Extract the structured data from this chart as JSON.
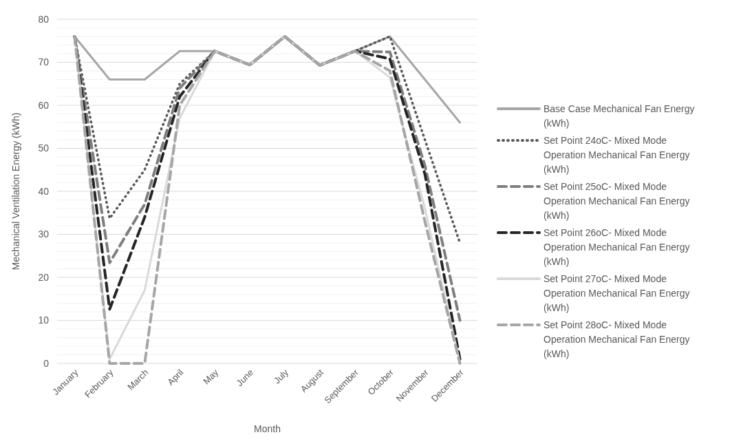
{
  "chart_data": {
    "type": "line",
    "xlabel": "Month",
    "ylabel": "Mechanical Ventilation Energy (kWh)",
    "categories": [
      "January",
      "February",
      "March",
      "April",
      "May",
      "June",
      "July",
      "August",
      "September",
      "October",
      "November",
      "December"
    ],
    "ylim": [
      0,
      80
    ],
    "yticks": [
      0,
      {
        "value": 2,
        "label": null
      },
      {
        "value": 4,
        "label": null
      },
      {
        "value": 6,
        "label": null
      },
      {
        "value": 8,
        "label": null
      },
      10,
      {
        "value": 12,
        "label": null
      },
      {
        "value": 14,
        "label": null
      },
      {
        "value": 16,
        "label": null
      },
      {
        "value": 18,
        "label": null
      },
      20,
      {
        "value": 22,
        "label": null
      },
      {
        "value": 24,
        "label": null
      },
      {
        "value": 26,
        "label": null
      },
      {
        "value": 28,
        "label": null
      },
      30,
      {
        "value": 32,
        "label": null
      },
      {
        "value": 34,
        "label": null
      },
      {
        "value": 36,
        "label": null
      },
      {
        "value": 38,
        "label": null
      },
      40,
      {
        "value": 42,
        "label": null
      },
      {
        "value": 44,
        "label": null
      },
      {
        "value": 46,
        "label": null
      },
      {
        "value": 48,
        "label": null
      },
      50,
      {
        "value": 52,
        "label": null
      },
      {
        "value": 54,
        "label": null
      },
      {
        "value": 56,
        "label": null
      },
      {
        "value": 58,
        "label": null
      },
      60,
      {
        "value": 62,
        "label": null
      },
      {
        "value": 64,
        "label": null
      },
      {
        "value": 66,
        "label": null
      },
      {
        "value": 68,
        "label": null
      },
      70,
      {
        "value": 72,
        "label": null
      },
      {
        "value": 74,
        "label": null
      },
      {
        "value": 76,
        "label": null
      },
      {
        "value": 78,
        "label": null
      },
      80
    ],
    "grid": "y",
    "legend": "right",
    "marker": "none",
    "series": [
      {
        "name": "Base Case Mechanical Fan Energy (kWh)",
        "color": "#a6a6a6",
        "line_style": "solid",
        "values": [
          76,
          66,
          66,
          72.6,
          72.6,
          69.4,
          76,
          69.3,
          72.6,
          76,
          66,
          56
        ]
      },
      {
        "name": "Set Point 24oC- Mixed Mode Operation Mechanical Fan Energy (kWh)",
        "color": "#595959",
        "line_style": "dotted",
        "values": [
          76,
          33.7,
          45,
          65,
          72.6,
          69.4,
          76,
          69.3,
          72.6,
          76,
          52,
          28
        ]
      },
      {
        "name": "Set Point 25oC- Mixed Mode Operation Mechanical Fan Energy (kWh)",
        "color": "#7f7f7f",
        "line_style": "dashed",
        "values": [
          76,
          23.4,
          37,
          64,
          72.6,
          69.4,
          76,
          69.3,
          72.6,
          72.4,
          46,
          10
        ]
      },
      {
        "name": "Set Point 26oC- Mixed Mode Operation Mechanical Fan Energy (kWh)",
        "color": "#262626",
        "line_style": "dashed",
        "values": [
          76,
          12.6,
          34,
          62,
          72.6,
          69.4,
          76,
          69.3,
          72.6,
          70.8,
          44,
          1
        ]
      },
      {
        "name": "Set Point 27oC- Mixed Mode Operation Mechanical Fan Energy (kWh)",
        "color": "#d9d9d9",
        "line_style": "solid",
        "values": [
          76,
          1,
          17,
          57,
          72.6,
          69.4,
          76,
          69.3,
          72.6,
          66.5,
          36,
          0
        ]
      },
      {
        "name": "Set Point 28oC- Mixed Mode Operation Mechanical Fan Energy (kWh)",
        "color": "#a6a6a6",
        "line_style": "dashed",
        "values": [
          76,
          0,
          0,
          60,
          72.6,
          69.4,
          76,
          69.3,
          72.6,
          68,
          33,
          0
        ]
      }
    ]
  }
}
